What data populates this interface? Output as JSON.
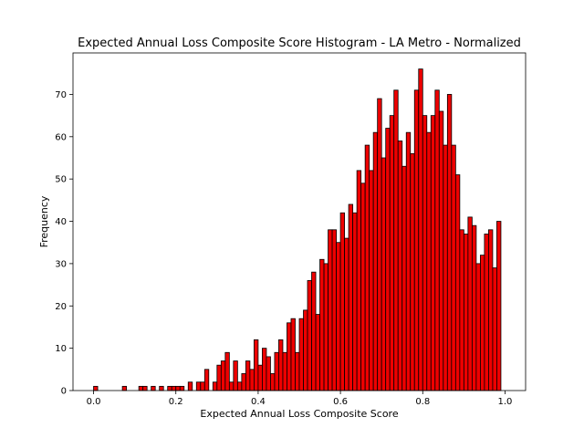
{
  "chart_data": {
    "type": "bar",
    "title": "Expected Annual Loss Composite Score Histogram - LA Metro - Normalized",
    "xlabel": "Expected Annual Loss Composite Score",
    "ylabel": "Frequency",
    "xlim": [
      -0.05,
      1.05
    ],
    "ylim": [
      0,
      79.8
    ],
    "xticks": [
      0.0,
      0.2,
      0.4,
      0.6,
      0.8,
      1.0
    ],
    "xtick_labels": [
      "0.0",
      "0.2",
      "0.4",
      "0.6",
      "0.8",
      "1.0"
    ],
    "yticks": [
      0,
      10,
      20,
      30,
      40,
      50,
      60,
      70
    ],
    "ytick_labels": [
      "0",
      "10",
      "20",
      "30",
      "40",
      "50",
      "60",
      "70"
    ],
    "bins": 100,
    "bin_range": [
      0,
      1
    ],
    "bar_color": "#ee0000",
    "edge_color": "#000000",
    "grid": false,
    "values": [
      1,
      0,
      0,
      0,
      0,
      0,
      0,
      1,
      0,
      0,
      0,
      1,
      1,
      0,
      1,
      0,
      1,
      0,
      1,
      1,
      1,
      1,
      0,
      2,
      0,
      2,
      2,
      5,
      0,
      2,
      6,
      7,
      9,
      2,
      7,
      2,
      4,
      7,
      5,
      12,
      6,
      10,
      8,
      4,
      9,
      12,
      9,
      16,
      17,
      9,
      17,
      19,
      26,
      28,
      18,
      31,
      30,
      38,
      38,
      35,
      42,
      36,
      44,
      42,
      52,
      49,
      58,
      52,
      61,
      69,
      55,
      62,
      65,
      71,
      59,
      53,
      61,
      56,
      71,
      76,
      65,
      61,
      65,
      71,
      66,
      58,
      70,
      58,
      51,
      38,
      37,
      41,
      39,
      30,
      32,
      37,
      38,
      29,
      40,
      0
    ]
  }
}
